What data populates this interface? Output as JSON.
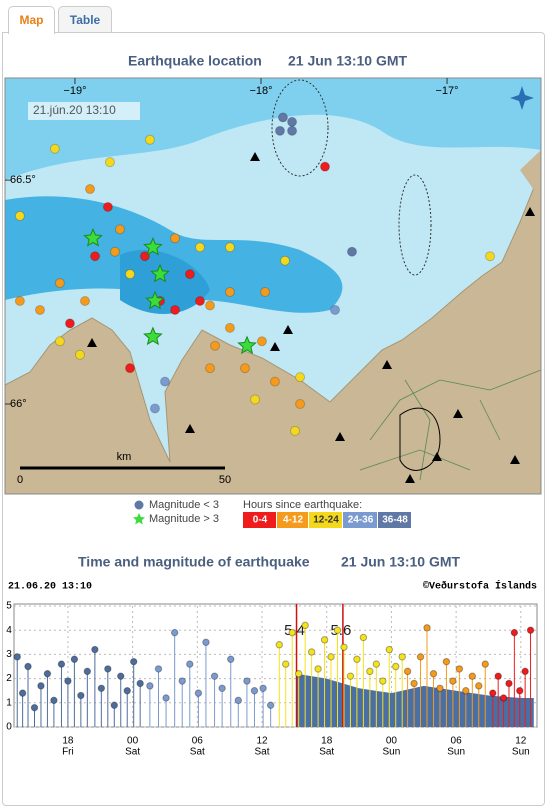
{
  "tabs": [
    "Map",
    "Table"
  ],
  "map": {
    "title": "Earthquake location",
    "time": "21 Jun 13:10 GMT",
    "stamp": "21.jún.20 13:10",
    "xlim": [
      -19.376,
      -16.495
    ],
    "ylim": [
      65.799,
      66.728
    ],
    "xticks": [
      {
        "value": -19,
        "label": "−19°"
      },
      {
        "value": -18,
        "label": "−18°"
      },
      {
        "value": -17,
        "label": "−17°"
      }
    ],
    "yticks": [
      {
        "value": 66.5,
        "label": "66.5°"
      },
      {
        "value": 66,
        "label": "66°"
      }
    ],
    "scale": {
      "unit": "km",
      "ticks": [
        0,
        50
      ]
    },
    "series": [
      {
        "name": "0-4",
        "color": "#ee1c1c",
        "lon": [
          -18.823,
          -18.624,
          -18.543,
          -18.462,
          -18.382,
          -18.328,
          -18.704,
          -18.892,
          -19.027,
          -17.656
        ],
        "lat": [
          66.44,
          66.33,
          66.23,
          66.21,
          66.29,
          66.23,
          66.08,
          66.33,
          66.18,
          66.53
        ]
      },
      {
        "name": "4-12",
        "color": "#f59a1b",
        "lon": [
          -19.296,
          -19.188,
          -19.081,
          -18.946,
          -18.785,
          -18.274,
          -18.167,
          -17.978,
          -18.247,
          -18.086,
          -17.925,
          -17.79,
          -18.274,
          -18.919,
          -18.758,
          -18.462,
          -18.167,
          -17.995
        ],
        "lat": [
          66.23,
          66.21,
          66.27,
          66.23,
          66.34,
          66.22,
          66.25,
          66.25,
          66.13,
          66.08,
          66.05,
          66.0,
          66.08,
          66.48,
          66.39,
          66.37,
          66.17,
          66.14
        ]
      },
      {
        "name": "12-24",
        "color": "#f4d81c",
        "lon": [
          -19.108,
          -18.812,
          -18.597,
          -17.871,
          -18.167,
          -18.328,
          -18.704,
          -19.081,
          -17.79,
          -17.817,
          -18.032,
          -16.769,
          -19.296,
          -18.973
        ],
        "lat": [
          66.57,
          66.54,
          66.59,
          66.32,
          66.35,
          66.35,
          66.29,
          66.14,
          66.06,
          65.94,
          66.01,
          66.33,
          66.42,
          66.11
        ]
      },
      {
        "name": "24-36",
        "color": "#7b9bd0",
        "lon": [
          -18.516,
          -18.57,
          -17.602
        ],
        "lat": [
          66.05,
          65.99,
          66.21
        ]
      },
      {
        "name": "36-48",
        "color": "#5f78a6",
        "lon": [
          -17.882,
          -17.833,
          -17.898,
          -17.833,
          -17.511
        ],
        "lat": [
          66.64,
          66.63,
          66.61,
          66.61,
          66.34
        ]
      }
    ],
    "large": {
      "color": "#3ddc3d",
      "lon": [
        -18.903,
        -18.581,
        -18.543,
        -18.57,
        -18.581,
        -18.075
      ],
      "lat": [
        66.37,
        66.35,
        66.29,
        66.23,
        66.15,
        66.13
      ]
    }
  },
  "legend": {
    "small": "Magnitude < 3",
    "large": "Magnitude > 3",
    "hours_title": "Hours since earthquake:"
  },
  "chart_data": {
    "type": "stem",
    "title": "Time and magnitude of earthquake",
    "subtitle": "21 Jun 13:10 GMT",
    "stamp": "21.06.20 13:10",
    "credit": "©Veðurstofa Íslands",
    "xlim": [
      13,
      61.5
    ],
    "ylim": [
      0,
      5
    ],
    "yticks": [
      0,
      1,
      2,
      3,
      4,
      5
    ],
    "xticks": [
      {
        "value": 18,
        "label": "18",
        "day": "Fri"
      },
      {
        "value": 24,
        "label": "00",
        "day": "Sat"
      },
      {
        "value": 30,
        "label": "06",
        "day": "Sat"
      },
      {
        "value": 36,
        "label": "12",
        "day": "Sat"
      },
      {
        "value": 42,
        "label": "18",
        "day": "Sat"
      },
      {
        "value": 48,
        "label": "00",
        "day": "Sun"
      },
      {
        "value": 54,
        "label": "06",
        "day": "Sun"
      },
      {
        "value": 60,
        "label": "12",
        "day": "Sun"
      }
    ],
    "area": {
      "color": "#4a6fa5",
      "x": [
        39.2,
        42,
        45,
        48,
        51,
        54,
        57,
        60,
        61.2
      ],
      "values": [
        2.2,
        2.0,
        1.6,
        1.4,
        1.7,
        1.5,
        1.3,
        1.2,
        1.2
      ]
    },
    "series": [
      {
        "color": "#4f6d9c",
        "x": [
          13.3,
          13.8,
          14.3,
          14.9,
          15.5,
          16.1,
          16.7,
          17.4,
          18.0,
          18.6,
          19.2,
          19.8,
          20.5,
          21.1,
          21.7,
          22.3,
          22.9,
          23.5,
          24.1,
          24.7
        ],
        "values": [
          2.9,
          1.4,
          2.5,
          0.8,
          1.7,
          2.2,
          1.1,
          2.6,
          1.9,
          2.8,
          1.3,
          2.3,
          3.2,
          1.6,
          2.4,
          0.9,
          2.1,
          1.5,
          2.7,
          1.8
        ]
      },
      {
        "color": "#7b9bd0",
        "x": [
          25.6,
          26.4,
          27.1,
          27.9,
          28.6,
          29.3,
          30.1,
          30.8,
          31.6,
          32.3,
          33.1,
          33.8,
          34.6,
          35.3,
          36.1,
          36.8
        ],
        "values": [
          1.7,
          2.4,
          1.2,
          3.9,
          1.9,
          2.6,
          1.4,
          3.5,
          2.1,
          1.6,
          2.8,
          1.1,
          1.9,
          1.5,
          1.6,
          0.9
        ]
      },
      {
        "color": "#f4e21c",
        "x": [
          37.6,
          38.2,
          38.8,
          39.4,
          40.0,
          40.6,
          41.2,
          41.8,
          42.4,
          43.0,
          43.6,
          44.2,
          44.8,
          45.4,
          46.0,
          46.6,
          47.2,
          47.8,
          48.4,
          49.0
        ],
        "values": [
          3.4,
          2.6,
          3.9,
          2.2,
          4.2,
          3.1,
          2.4,
          3.6,
          2.9,
          4.0,
          3.3,
          2.1,
          2.8,
          3.7,
          2.3,
          2.6,
          1.9,
          3.2,
          2.5,
          2.9
        ]
      },
      {
        "color": "#f59a1b",
        "x": [
          49.5,
          50.1,
          50.7,
          51.3,
          51.9,
          52.5,
          53.1,
          53.7,
          54.3,
          54.9,
          55.5,
          56.1,
          56.7
        ],
        "values": [
          2.3,
          1.8,
          2.9,
          4.1,
          2.2,
          1.6,
          2.7,
          1.9,
          2.4,
          1.5,
          2.1,
          1.7,
          2.6
        ]
      },
      {
        "color": "#ee1c1c",
        "x": [
          57.4,
          57.9,
          58.4,
          58.9,
          59.4,
          59.9,
          60.4,
          60.9
        ],
        "values": [
          1.4,
          2.1,
          1.2,
          1.8,
          3.9,
          1.5,
          2.3,
          4.0
        ]
      }
    ],
    "annotations": [
      {
        "x": 39.2,
        "value": 5.4
      },
      {
        "x": 43.5,
        "value": 5.6
      }
    ]
  }
}
